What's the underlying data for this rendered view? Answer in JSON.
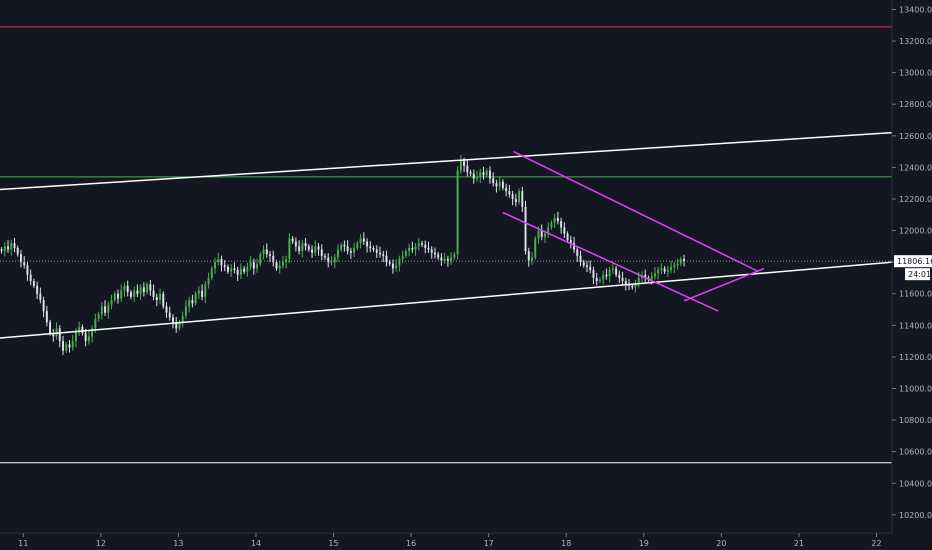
{
  "chart_data": {
    "type": "candlestick",
    "x_axis": {
      "ticks": [
        {
          "label": "11",
          "day": 11
        },
        {
          "label": "12",
          "day": 12
        },
        {
          "label": "13",
          "day": 13
        },
        {
          "label": "14",
          "day": 14
        },
        {
          "label": "15",
          "day": 15
        },
        {
          "label": "16",
          "day": 16
        },
        {
          "label": "17",
          "day": 17
        },
        {
          "label": "18",
          "day": 18
        },
        {
          "label": "19",
          "day": 19
        },
        {
          "label": "20",
          "day": 20
        },
        {
          "label": "21",
          "day": 21
        },
        {
          "label": "22",
          "day": 22
        }
      ],
      "range": [
        10.7,
        22.2
      ]
    },
    "y_axis": {
      "ticks": [
        "13400.00",
        "13200.00",
        "13000.00",
        "12800.00",
        "12600.00",
        "12400.00",
        "12200.00",
        "12000.00",
        "11800.00",
        "11600.00",
        "11400.00",
        "11200.00",
        "11000.00",
        "10800.00",
        "10600.00",
        "10400.00",
        "10200.00"
      ],
      "range": [
        10085,
        13460
      ]
    },
    "last_price": {
      "value": 11806.16,
      "label": "11806.16",
      "countdown": "24:01"
    },
    "grid": false,
    "horizontal_lines": [
      {
        "value": 13290,
        "color": "#f23645"
      },
      {
        "value": 12340,
        "color": "#4caf50"
      },
      {
        "value": 10530,
        "color": "#ffffff"
      }
    ],
    "trend_lines": [
      {
        "name": "channel-upper",
        "color": "#ffffff",
        "points": [
          [
            10.7,
            12260
          ],
          [
            22.2,
            12620
          ]
        ]
      },
      {
        "name": "channel-lower",
        "color": "#ffffff",
        "points": [
          [
            10.7,
            11320
          ],
          [
            22.2,
            11800
          ]
        ]
      },
      {
        "name": "wedge-top",
        "color": "#e040fb",
        "points": [
          [
            17.32,
            12500
          ],
          [
            20.48,
            11740
          ]
        ]
      },
      {
        "name": "wedge-bottom",
        "color": "#e040fb",
        "points": [
          [
            17.18,
            12115
          ],
          [
            19.96,
            11490
          ]
        ]
      },
      {
        "name": "cross-line",
        "color": "#e040fb",
        "points": [
          [
            19.52,
            11555
          ],
          [
            20.55,
            11760
          ]
        ]
      }
    ],
    "candles_start_day": 10.72,
    "candles_interval_days": 0.0417,
    "colors": {
      "up": "#26a69a",
      "down": "#ffffff",
      "up_body": "#4caf50",
      "down_body": "#e0e3eb",
      "background": "#131722",
      "axis_text": "#b2b5be",
      "last_price_line": "#9598a1"
    },
    "closes": [
      11870,
      11900,
      11880,
      11920,
      11890,
      11850,
      11800,
      11780,
      11720,
      11680,
      11650,
      11600,
      11560,
      11490,
      11420,
      11350,
      11330,
      11380,
      11300,
      11240,
      11280,
      11260,
      11300,
      11360,
      11390,
      11350,
      11300,
      11330,
      11380,
      11440,
      11470,
      11520,
      11480,
      11530,
      11560,
      11600,
      11570,
      11620,
      11650,
      11610,
      11580,
      11620,
      11600,
      11640,
      11610,
      11660,
      11620,
      11580,
      11560,
      11600,
      11520,
      11480,
      11450,
      11420,
      11380,
      11420,
      11460,
      11520,
      11560,
      11540,
      11600,
      11620,
      11580,
      11660,
      11700,
      11760,
      11800,
      11820,
      11780,
      11770,
      11740,
      11760,
      11750,
      11720,
      11760,
      11740,
      11770,
      11800,
      11760,
      11790,
      11850,
      11880,
      11850,
      11840,
      11800,
      11760,
      11780,
      11800,
      11820,
      11950,
      11930,
      11900,
      11870,
      11920,
      11900,
      11880,
      11860,
      11900,
      11880,
      11840,
      11830,
      11800,
      11800,
      11830,
      11880,
      11910,
      11900,
      11870,
      11860,
      11890,
      11920,
      11950,
      11930,
      11900,
      11890,
      11880,
      11860,
      11850,
      11840,
      11800,
      11790,
      11760,
      11780,
      11820,
      11840,
      11870,
      11890,
      11880,
      11900,
      11920,
      11910,
      11890,
      11880,
      11860,
      11850,
      11830,
      11810,
      11820,
      11810,
      11830,
      11850,
      12380,
      12440,
      12410,
      12370,
      12360,
      12330,
      12340,
      12370,
      12350,
      12380,
      12330,
      12300,
      12280,
      12310,
      12270,
      12250,
      12230,
      12200,
      12180,
      12250,
      12150,
      11870,
      11810,
      11830,
      11950,
      12000,
      11960,
      11980,
      12020,
      12050,
      12080,
      12060,
      12020,
      11980,
      11940,
      11920,
      11880,
      11840,
      11800,
      11780,
      11770,
      11750,
      11700,
      11680,
      11690,
      11720,
      11710,
      11750,
      11760,
      11720,
      11700,
      11680,
      11660,
      11650,
      11640,
      11660,
      11700,
      11720,
      11700,
      11690,
      11710,
      11730,
      11750,
      11760,
      11740,
      11750,
      11770,
      11780,
      11790,
      11820,
      11806
    ]
  }
}
